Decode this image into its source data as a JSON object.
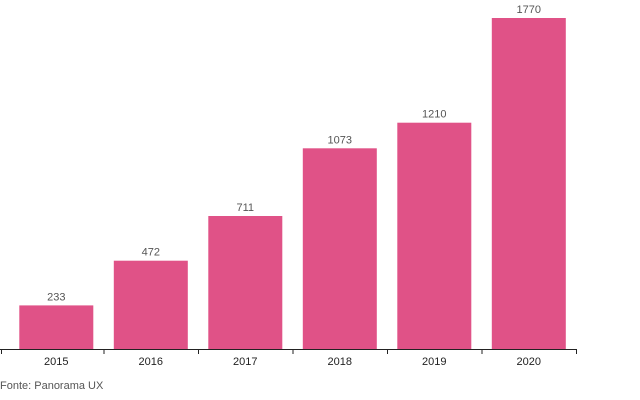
{
  "colors": {
    "bar": "#e05287",
    "axis": "#222222",
    "label": "#555555"
  },
  "chart_data": {
    "type": "bar",
    "categories": [
      "2015",
      "2016",
      "2017",
      "2018",
      "2019",
      "2020"
    ],
    "values": [
      233,
      472,
      711,
      1073,
      1210,
      1770
    ],
    "value_labels": [
      "233",
      "472",
      "711",
      "1073",
      "1210",
      "1770"
    ],
    "title": "",
    "xlabel": "",
    "ylabel": "",
    "ylim": [
      0,
      1770
    ],
    "grid": false,
    "legend": "none"
  },
  "source": "Fonte: Panorama UX"
}
